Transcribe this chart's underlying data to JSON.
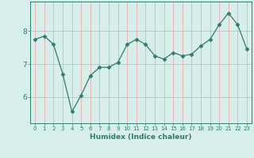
{
  "x_values": [
    0,
    1,
    2,
    3,
    4,
    5,
    6,
    7,
    8,
    9,
    10,
    11,
    12,
    13,
    14,
    15,
    16,
    17,
    18,
    19,
    20,
    21,
    22,
    23
  ],
  "y_values": [
    7.75,
    7.85,
    7.6,
    6.7,
    5.55,
    6.05,
    6.65,
    6.9,
    6.9,
    7.05,
    7.6,
    7.75,
    7.6,
    7.25,
    7.15,
    7.35,
    7.25,
    7.3,
    7.55,
    7.75,
    8.2,
    8.55,
    8.2,
    7.45
  ],
  "line_color": "#2e7d6e",
  "marker": "D",
  "marker_size": 2.5,
  "bg_color": "#d8eeeb",
  "grid_color": "#f0a0a0",
  "xlabel": "Humidex (Indice chaleur)",
  "yticks": [
    6,
    7,
    8
  ],
  "ylim": [
    5.2,
    8.9
  ],
  "xlim": [
    -0.5,
    23.5
  ],
  "xlabel_fontsize": 6.5,
  "xtick_fontsize": 5.0,
  "ytick_fontsize": 6.5
}
